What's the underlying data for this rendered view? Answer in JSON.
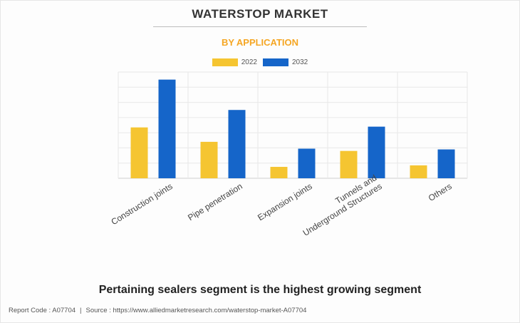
{
  "header": {
    "title": "WATERSTOP MARKET",
    "subtitle": "BY APPLICATION"
  },
  "colors": {
    "series_2022": "#f5c531",
    "series_2032": "#1565c9",
    "subtitle": "#f5a623"
  },
  "chart_data": {
    "type": "bar",
    "categories": [
      [
        "Construction joints"
      ],
      [
        "Pipe penetration"
      ],
      [
        "Expansion joints"
      ],
      [
        "Tunnels and",
        "Underground Structures"
      ],
      [
        "Others"
      ]
    ],
    "series": [
      {
        "name": "2022",
        "values": [
          3.35,
          2.4,
          0.75,
          1.8,
          0.85
        ]
      },
      {
        "name": "2032",
        "values": [
          6.5,
          4.5,
          1.95,
          3.4,
          1.9
        ]
      }
    ],
    "ylim": [
      0,
      7
    ],
    "grid": true,
    "legend": "top-center"
  },
  "tagline": "Pertaining sealers segment is the highest growing segment",
  "footer": {
    "report_code": "Report Code : A07704",
    "source": "Source : https://www.alliedmarketresearch.com/waterstop-market-A07704"
  }
}
